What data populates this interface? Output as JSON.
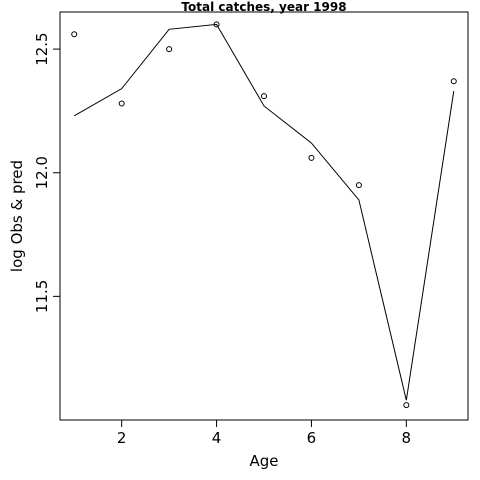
{
  "chart_data": {
    "type": "line",
    "title": "Total catches, year 1998",
    "xlabel": "Age",
    "ylabel": "log Obs & pred",
    "xlim": [
      0.7,
      9.3
    ],
    "ylim": [
      11.0,
      12.65
    ],
    "x_ticks": [
      2,
      4,
      6,
      8
    ],
    "y_ticks": [
      11.5,
      12.0,
      12.5
    ],
    "x_tick_labels": [
      "2",
      "4",
      "6",
      "8"
    ],
    "y_tick_labels": [
      "11.5",
      "12.0",
      "12.5"
    ],
    "grid": false,
    "legend": "none",
    "series": [
      {
        "kind": "points",
        "marker": "open-circle",
        "x": [
          1,
          2,
          3,
          4,
          5,
          6,
          7,
          8,
          9
        ],
        "y": [
          12.56,
          12.28,
          12.5,
          12.6,
          12.31,
          12.06,
          11.95,
          11.06,
          12.37
        ]
      },
      {
        "kind": "line",
        "x": [
          1,
          2,
          3,
          4,
          5,
          6,
          7,
          8,
          9
        ],
        "y": [
          12.23,
          12.34,
          12.58,
          12.6,
          12.27,
          12.12,
          11.89,
          11.08,
          12.33
        ]
      }
    ]
  }
}
